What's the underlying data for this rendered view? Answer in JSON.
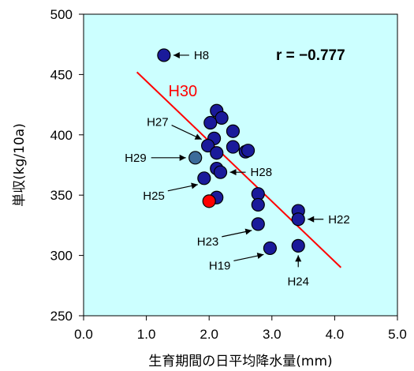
{
  "chart_data": {
    "type": "scatter",
    "xlabel": "生育期間の日平均降水量(mm)",
    "ylabel": "単収(kg/10a)",
    "xlim": [
      0,
      5
    ],
    "ylim": [
      250,
      500
    ],
    "x_ticks": [
      "0.0",
      "1.0",
      "2.0",
      "3.0",
      "4.0",
      "5.0"
    ],
    "y_ticks": [
      "250",
      "300",
      "350",
      "400",
      "450",
      "500"
    ],
    "plot_background": "#ccffff",
    "grid": false,
    "correlation_label": "r = −0.777",
    "trendline": {
      "label": "H30",
      "color": "#ff0000",
      "points": [
        [
          0.85,
          452
        ],
        [
          4.1,
          290
        ]
      ]
    },
    "points": [
      {
        "x": 1.28,
        "y": 466,
        "color": "#1a1a9a"
      },
      {
        "x": 2.12,
        "y": 420,
        "color": "#1a1a9a"
      },
      {
        "x": 2.2,
        "y": 414,
        "color": "#1a1a9a"
      },
      {
        "x": 2.02,
        "y": 410,
        "color": "#1a1a9a"
      },
      {
        "x": 2.38,
        "y": 403,
        "color": "#1a1a9a"
      },
      {
        "x": 2.08,
        "y": 397,
        "color": "#1a1a9a"
      },
      {
        "x": 1.98,
        "y": 391,
        "color": "#1a1a9a"
      },
      {
        "x": 2.38,
        "y": 390,
        "color": "#1a1a9a"
      },
      {
        "x": 2.58,
        "y": 386,
        "color": "#1a1a9a"
      },
      {
        "x": 2.62,
        "y": 387,
        "color": "#1a1a9a"
      },
      {
        "x": 2.12,
        "y": 385,
        "color": "#1a1a9a"
      },
      {
        "x": 1.78,
        "y": 381,
        "color": "#3b6b9a"
      },
      {
        "x": 2.12,
        "y": 372,
        "color": "#1a1a9a"
      },
      {
        "x": 2.18,
        "y": 369,
        "color": "#1a1a9a"
      },
      {
        "x": 1.92,
        "y": 364,
        "color": "#1a1a9a"
      },
      {
        "x": 2.78,
        "y": 351,
        "color": "#1a1a9a"
      },
      {
        "x": 2.12,
        "y": 348,
        "color": "#1a1a9a"
      },
      {
        "x": 2.0,
        "y": 345,
        "color": "#ff0000"
      },
      {
        "x": 2.78,
        "y": 342,
        "color": "#1a1a9a"
      },
      {
        "x": 3.42,
        "y": 337,
        "color": "#1a1a9a"
      },
      {
        "x": 3.42,
        "y": 330,
        "color": "#1a1a9a"
      },
      {
        "x": 2.78,
        "y": 326,
        "color": "#1a1a9a"
      },
      {
        "x": 3.42,
        "y": 308,
        "color": "#1a1a9a"
      },
      {
        "x": 2.97,
        "y": 306,
        "color": "#1a1a9a"
      }
    ],
    "annotations": [
      {
        "text": "H8",
        "target": [
          1.28,
          466
        ],
        "anchor": "right"
      },
      {
        "text": "H27",
        "target": [
          1.98,
          391
        ],
        "anchor": "upper-left"
      },
      {
        "text": "H29",
        "target": [
          1.78,
          381
        ],
        "anchor": "left"
      },
      {
        "text": "H25",
        "target": [
          1.92,
          364
        ],
        "anchor": "lower-left"
      },
      {
        "text": "H28",
        "target": [
          2.18,
          369
        ],
        "anchor": "right"
      },
      {
        "text": "H23",
        "target": [
          2.78,
          326
        ],
        "anchor": "lower-left"
      },
      {
        "text": "H19",
        "target": [
          2.97,
          306
        ],
        "anchor": "lower-left"
      },
      {
        "text": "H22",
        "target": [
          3.42,
          330
        ],
        "anchor": "right"
      },
      {
        "text": "H24",
        "target": [
          3.42,
          308
        ],
        "anchor": "below"
      }
    ]
  }
}
